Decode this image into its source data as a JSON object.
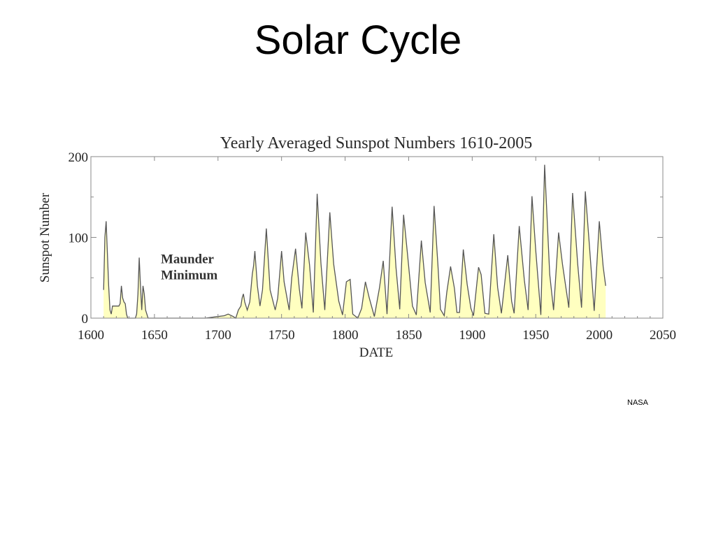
{
  "slide": {
    "title": "Solar Cycle",
    "credit": "NASA"
  },
  "colors": {
    "fill": "#ffffc0",
    "line": "#555555",
    "frame": "#888888"
  },
  "chart_data": {
    "type": "area",
    "title": "Yearly Averaged Sunspot Numbers 1610-2005",
    "xlabel": "DATE",
    "ylabel": "Sunspot Number",
    "xlim": [
      1600,
      2050
    ],
    "ylim": [
      0,
      200
    ],
    "x_ticks": [
      1600,
      1650,
      1700,
      1750,
      1800,
      1850,
      1900,
      1950,
      2000,
      2050
    ],
    "y_ticks": [
      0,
      100,
      200
    ],
    "grid": false,
    "annotation": {
      "lines": [
        "Maunder",
        "Minimum"
      ],
      "x": 1655,
      "y": 68
    },
    "series": [
      {
        "x": [
          1610,
          1611,
          1612,
          1613,
          1614,
          1615,
          1616,
          1617,
          1618,
          1619,
          1620,
          1621,
          1622,
          1623,
          1624,
          1625,
          1626,
          1627,
          1628,
          1629,
          1630,
          1631,
          1632,
          1633,
          1634,
          1635,
          1636,
          1637,
          1638,
          1639,
          1640,
          1641,
          1642,
          1643,
          1644,
          1645,
          1650,
          1660,
          1670,
          1680,
          1690,
          1700,
          1705,
          1708,
          1712,
          1714,
          1716,
          1718,
          1719,
          1720,
          1721,
          1723,
          1725,
          1727,
          1728,
          1729,
          1731,
          1733,
          1735,
          1738,
          1741,
          1745,
          1747,
          1750,
          1752,
          1756,
          1758,
          1761,
          1764,
          1766,
          1769,
          1772,
          1775,
          1778,
          1781,
          1784,
          1788,
          1791,
          1795,
          1798,
          1801,
          1804,
          1806,
          1810,
          1813,
          1816,
          1819,
          1823,
          1827,
          1830,
          1833,
          1837,
          1840,
          1843,
          1846,
          1849,
          1853,
          1856,
          1860,
          1863,
          1867,
          1870,
          1873,
          1875,
          1878,
          1880,
          1883,
          1886,
          1888,
          1890,
          1893,
          1896,
          1899,
          1901,
          1905,
          1907,
          1910,
          1913,
          1917,
          1920,
          1923,
          1928,
          1931,
          1933,
          1937,
          1941,
          1944,
          1947,
          1950,
          1954,
          1957,
          1961,
          1964,
          1968,
          1971,
          1976,
          1979,
          1983,
          1986,
          1989,
          1992,
          1996,
          2000,
          2003,
          2005
        ],
        "y": [
          35,
          100,
          120,
          80,
          40,
          10,
          5,
          15,
          15,
          15,
          15,
          15,
          15,
          18,
          40,
          25,
          20,
          18,
          5,
          0,
          0,
          0,
          0,
          0,
          0,
          0,
          5,
          30,
          75,
          40,
          10,
          40,
          30,
          10,
          5,
          0,
          0,
          0,
          0,
          0,
          0,
          2,
          3,
          5,
          2,
          0,
          10,
          15,
          25,
          30,
          20,
          10,
          20,
          55,
          65,
          83,
          40,
          15,
          35,
          111,
          35,
          10,
          25,
          83,
          45,
          10,
          50,
          86,
          36,
          12,
          106,
          66,
          7,
          154,
          68,
          10,
          131,
          67,
          21,
          4,
          45,
          48,
          5,
          0,
          12,
          45,
          25,
          2,
          37,
          71,
          5,
          138,
          63,
          11,
          128,
          81,
          15,
          4,
          96,
          44,
          7,
          139,
          66,
          11,
          3,
          32,
          64,
          37,
          7,
          7,
          85,
          42,
          12,
          3,
          63,
          54,
          6,
          5,
          104,
          38,
          6,
          78,
          21,
          6,
          114,
          47,
          10,
          151,
          84,
          4,
          190,
          54,
          10,
          106,
          67,
          13,
          155,
          67,
          13,
          157,
          94,
          9,
          120,
          64,
          40
        ]
      }
    ]
  }
}
